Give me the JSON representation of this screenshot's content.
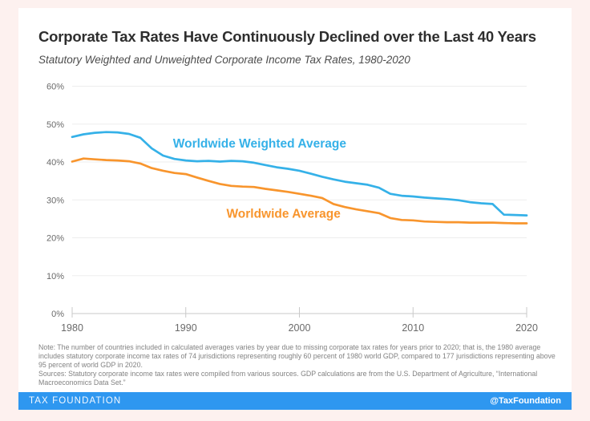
{
  "header": {
    "title": "Corporate Tax Rates Have Continuously Declined over the Last 40 Years",
    "subtitle": "Statutory Weighted and Unweighted Corporate Income Tax Rates, 1980-2020"
  },
  "chart_data": {
    "type": "line",
    "title": "Corporate Tax Rates Have Continuously Declined over the Last 40 Years",
    "subtitle": "Statutory Weighted and Unweighted Corporate Income Tax Rates, 1980-2020",
    "x": [
      1980,
      1981,
      1982,
      1983,
      1984,
      1985,
      1986,
      1987,
      1988,
      1989,
      1990,
      1991,
      1992,
      1993,
      1994,
      1995,
      1996,
      1997,
      1998,
      1999,
      2000,
      2001,
      2002,
      2003,
      2004,
      2005,
      2006,
      2007,
      2008,
      2009,
      2010,
      2011,
      2012,
      2013,
      2014,
      2015,
      2016,
      2017,
      2018,
      2019,
      2020
    ],
    "series": [
      {
        "name": "Worldwide Weighted Average",
        "color": "#35b1e8",
        "values": [
          46.6,
          47.3,
          47.7,
          47.9,
          47.8,
          47.4,
          46.4,
          43.6,
          41.7,
          40.8,
          40.4,
          40.2,
          40.3,
          40.1,
          40.3,
          40.2,
          39.8,
          39.2,
          38.6,
          38.2,
          37.7,
          36.9,
          36.1,
          35.4,
          34.8,
          34.4,
          34.0,
          33.2,
          31.6,
          31.1,
          30.9,
          30.6,
          30.4,
          30.2,
          29.9,
          29.4,
          29.1,
          28.9,
          26.1,
          26.0,
          25.9
        ],
        "label": {
          "text": "Worldwide Weighted Average",
          "year": 1996.5,
          "value": 43.8
        }
      },
      {
        "name": "Worldwide Average",
        "color": "#f8952d",
        "values": [
          40.1,
          40.9,
          40.7,
          40.5,
          40.4,
          40.2,
          39.6,
          38.4,
          37.7,
          37.1,
          36.8,
          35.9,
          35.0,
          34.2,
          33.7,
          33.5,
          33.4,
          32.9,
          32.5,
          32.1,
          31.6,
          31.1,
          30.5,
          28.9,
          28.1,
          27.5,
          27.0,
          26.5,
          25.2,
          24.7,
          24.6,
          24.3,
          24.2,
          24.1,
          24.1,
          24.0,
          24.0,
          24.0,
          23.9,
          23.8,
          23.8
        ],
        "label": {
          "text": "Worldwide Average",
          "year": 1998.6,
          "value": 25.3
        }
      }
    ],
    "xticks": [
      1980,
      1990,
      2000,
      2010,
      2020
    ],
    "yticks": [
      0,
      10,
      20,
      30,
      40,
      50,
      60
    ],
    "ytick_suffix": "%",
    "xlim": [
      1980,
      2020
    ],
    "ylim": [
      0,
      60
    ],
    "grid": true,
    "legend_position": "inline-labels",
    "xlabel": "",
    "ylabel": ""
  },
  "footnotes": {
    "note": "Note: The number of countries included in calculated averages varies by year due to missing corporate tax rates for years prior to 2020; that is, the 1980 average includes statutory corporate income tax rates of 74 jurisdictions representing roughly 60 percent of 1980 world GDP, compared to 177 jurisdictions representing above 95 percent of world GDP in 2020.",
    "sources": "Sources: Statutory corporate income tax rates were compiled from various sources. GDP calculations are from the U.S. Department of Agriculture, “International Macroeconomics Data Set.”"
  },
  "footer": {
    "brand": "TAX FOUNDATION",
    "handle": "@TaxFoundation",
    "bar_color": "#2e97f0"
  },
  "colors": {
    "background": "#fdf1ef",
    "card": "#ffffff",
    "weighted_line": "#35b1e8",
    "average_line": "#f8952d",
    "footer_bar": "#2e97f0",
    "gridline": "#ededed",
    "axis": "#c9c9c9",
    "tick_text": "#6a6a6a"
  }
}
